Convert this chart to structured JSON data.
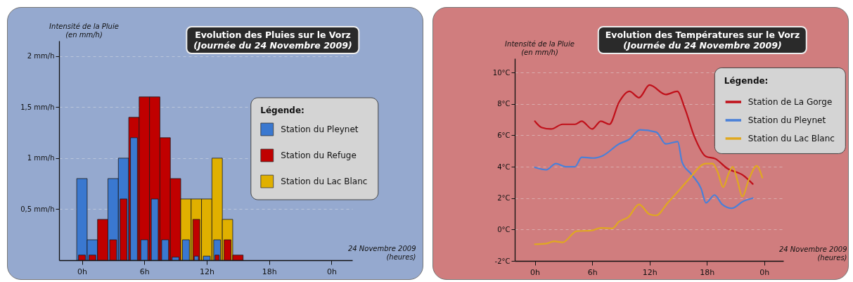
{
  "chart_data": [
    {
      "type": "bar",
      "title": "Evolution des Pluies sur le Vorz",
      "subtitle": "(Journée du 24 Novembre 2009)",
      "xlabel": "24 Novembre 2009\n(heures)",
      "ylabel": "Intensité de la Pluie\n(en mm/h)",
      "legend_title": "Légende:",
      "x": [
        "2009-11-24T00:00",
        "2009-11-24T01:00",
        "2009-11-24T02:00",
        "2009-11-24T03:00",
        "2009-11-24T04:00",
        "2009-11-24T05:00",
        "2009-11-24T06:00",
        "2009-11-24T07:00",
        "2009-11-24T08:00",
        "2009-11-24T09:00",
        "2009-11-24T10:00",
        "2009-11-24T11:00",
        "2009-11-24T12:00",
        "2009-11-24T13:00",
        "2009-11-24T14:00",
        "2009-11-24T15:00"
      ],
      "series": [
        {
          "name": "Station du Pleynet",
          "color": "#3a78d0",
          "values": [
            0.8,
            0.2,
            null,
            0.8,
            1.0,
            1.2,
            0.2,
            0.6,
            0.2,
            0.03,
            0.2,
            0.04,
            0.04,
            0.2,
            null,
            null
          ]
        },
        {
          "name": "Station du Refuge",
          "color": "#c00000",
          "values": [
            0.05,
            0.05,
            0.4,
            0.2,
            0.6,
            1.4,
            1.6,
            1.6,
            1.2,
            0.8,
            null,
            0.4,
            null,
            0.05,
            0.2,
            0.05
          ]
        },
        {
          "name": "Station du Lac Blanc",
          "color": "#e0b000",
          "values": [
            null,
            null,
            null,
            null,
            null,
            null,
            null,
            null,
            null,
            null,
            0.6,
            0.6,
            0.6,
            1.0,
            0.4,
            null
          ]
        }
      ],
      "xlim": [
        "2009-11-23T21:48",
        "2009-11-25T02:00"
      ],
      "xticks": [
        {
          "value": "2009-11-24T00:00",
          "label": "0h"
        },
        {
          "value": "2009-11-24T06:00",
          "label": "6h"
        },
        {
          "value": "2009-11-24T12:00",
          "label": "12h"
        },
        {
          "value": "2009-11-24T18:00",
          "label": "18h"
        },
        {
          "value": "2009-11-25T00:00",
          "label": "0h"
        }
      ],
      "ylim": [
        0,
        2.15
      ],
      "yticks": [
        {
          "value": 0.5,
          "label": "0,5 mm/h"
        },
        {
          "value": 1,
          "label": "1 mm/h"
        },
        {
          "value": 1.5,
          "label": "1,5 mm/h"
        },
        {
          "value": 2,
          "label": "2 mm/h"
        }
      ],
      "grid": "y",
      "legend": "right"
    },
    {
      "type": "line",
      "title": "Evolution des Températures sur le Vorz",
      "subtitle": "(Journée du 24 Novembre 2009)",
      "xlabel": "24 Novembre 2009\n(heures)",
      "ylabel": "Intensité de la Pluie\n(en mm/h)",
      "legend_title": "Légende:",
      "series": [
        {
          "name": "Station de La Gorge",
          "color": "#c0101a",
          "x": [
            "2009-11-24T00:00",
            "2009-11-24T00:42",
            "2009-11-24T01:42",
            "2009-11-24T02:54",
            "2009-11-24T04:12",
            "2009-11-24T04:54",
            "2009-11-24T06:00",
            "2009-11-24T06:54",
            "2009-11-24T07:48",
            "2009-11-24T08:48",
            "2009-11-24T09:54",
            "2009-11-24T10:54",
            "2009-11-24T12:00",
            "2009-11-24T13:42",
            "2009-11-24T14:54",
            "2009-11-24T15:42",
            "2009-11-24T16:42",
            "2009-11-24T17:54",
            "2009-11-24T18:54",
            "2009-11-24T20:06",
            "2009-11-24T21:48",
            "2009-11-24T22:48"
          ],
          "values": [
            6.9,
            6.5,
            6.4,
            6.7,
            6.7,
            6.9,
            6.4,
            6.9,
            6.7,
            8.1,
            8.8,
            8.4,
            9.2,
            8.6,
            8.8,
            7.7,
            5.9,
            4.65,
            4.5,
            3.9,
            3.45,
            2.9
          ]
        },
        {
          "name": "Station du Pleynet",
          "color": "#4a80d8",
          "x": [
            "2009-11-24T00:00",
            "2009-11-24T01:12",
            "2009-11-24T02:12",
            "2009-11-24T03:12",
            "2009-11-24T04:12",
            "2009-11-24T04:54",
            "2009-11-24T06:06",
            "2009-11-24T07:06",
            "2009-11-24T08:48",
            "2009-11-24T09:54",
            "2009-11-24T11:00",
            "2009-11-24T12:42",
            "2009-11-24T13:42",
            "2009-11-24T14:57",
            "2009-11-24T15:24",
            "2009-11-24T16:24",
            "2009-11-24T17:24",
            "2009-11-24T17:54",
            "2009-11-24T18:48",
            "2009-11-24T19:36",
            "2009-11-24T20:36",
            "2009-11-24T21:48",
            "2009-11-24T22:48"
          ],
          "values": [
            3.96,
            3.8,
            4.2,
            4.0,
            4.0,
            4.6,
            4.55,
            4.7,
            5.45,
            5.75,
            6.35,
            6.2,
            5.45,
            5.6,
            4.3,
            3.5,
            2.6,
            1.7,
            2.2,
            1.6,
            1.35,
            1.8,
            2.0
          ]
        },
        {
          "name": "Station du Lac Blanc",
          "color": "#e0a820",
          "x": [
            "2009-11-24T00:00",
            "2009-11-24T01:12",
            "2009-11-24T02:00",
            "2009-11-24T02:54",
            "2009-11-24T04:24",
            "2009-11-24T05:54",
            "2009-11-24T06:54",
            "2009-11-24T08:06",
            "2009-11-24T08:48",
            "2009-11-24T09:48",
            "2009-11-24T10:54",
            "2009-11-24T12:00",
            "2009-11-24T12:42",
            "2009-11-24T13:54",
            "2009-11-24T15:06",
            "2009-11-24T16:06",
            "2009-11-24T17:54",
            "2009-11-24T18:36",
            "2009-11-24T19:06",
            "2009-11-24T19:42",
            "2009-11-24T20:18",
            "2009-11-24T20:42",
            "2009-11-24T21:12",
            "2009-11-24T21:42",
            "2009-11-24T22:24",
            "2009-11-24T23:12",
            "2009-11-24T23:48"
          ],
          "values": [
            -0.94,
            -0.9,
            -0.75,
            -0.82,
            -0.1,
            -0.07,
            0.1,
            0.07,
            0.5,
            0.8,
            1.6,
            0.97,
            0.9,
            1.7,
            2.5,
            3.2,
            4.2,
            4.2,
            3.7,
            2.7,
            3.6,
            4.0,
            3.1,
            2.1,
            3.2,
            4.05,
            3.3
          ]
        }
      ],
      "xlim": [
        "2009-11-23T21:54",
        "2009-11-25T02:00"
      ],
      "xticks": [
        {
          "value": "2009-11-24T00:00",
          "label": "0h"
        },
        {
          "value": "2009-11-24T06:00",
          "label": "6h"
        },
        {
          "value": "2009-11-24T12:00",
          "label": "12h"
        },
        {
          "value": "2009-11-24T18:00",
          "label": "18h"
        },
        {
          "value": "2009-11-25T00:00",
          "label": "0h"
        }
      ],
      "ylim": [
        -2,
        10.9
      ],
      "yticks": [
        {
          "value": -2,
          "label": "-2°C"
        },
        {
          "value": 0,
          "label": "0°C"
        },
        {
          "value": 2,
          "label": "2°C"
        },
        {
          "value": 4,
          "label": "4°C"
        },
        {
          "value": 6,
          "label": "6°C"
        },
        {
          "value": 8,
          "label": "8°C"
        },
        {
          "value": 10,
          "label": "10°C"
        }
      ],
      "grid": "y",
      "line_style": "solid",
      "legend": "top right"
    }
  ]
}
